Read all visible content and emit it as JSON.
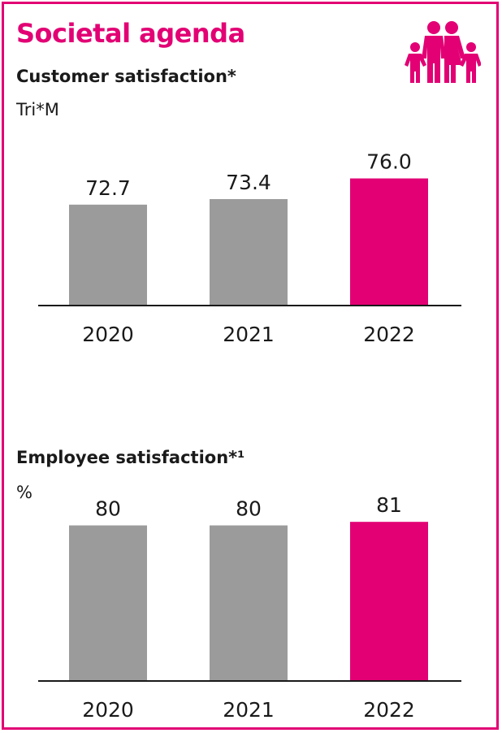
{
  "title": "Societal agenda",
  "colors": {
    "accent": "#e20074",
    "bar_past": "#9b9b9b",
    "text": "#1a1a1a",
    "axis": "#1a1a1a"
  },
  "icon": "family-icon",
  "chart_data": [
    {
      "type": "bar",
      "title": "Customer satisfaction*",
      "subtitle": "Tri*M",
      "categories": [
        "2020",
        "2021",
        "2022"
      ],
      "values": [
        72.7,
        73.4,
        76.0
      ],
      "value_labels": [
        "72.7",
        "73.4",
        "76.0"
      ],
      "highlight_index": 2,
      "ylim": [
        60,
        78
      ],
      "grid": false,
      "legend": "none"
    },
    {
      "type": "bar",
      "title": "Employee satisfaction*¹",
      "subtitle": "%",
      "categories": [
        "2020",
        "2021",
        "2022"
      ],
      "values": [
        80,
        80,
        81
      ],
      "value_labels": [
        "80",
        "80",
        "81"
      ],
      "highlight_index": 2,
      "ylim": [
        36,
        81.5
      ],
      "grid": false,
      "legend": "none"
    }
  ]
}
